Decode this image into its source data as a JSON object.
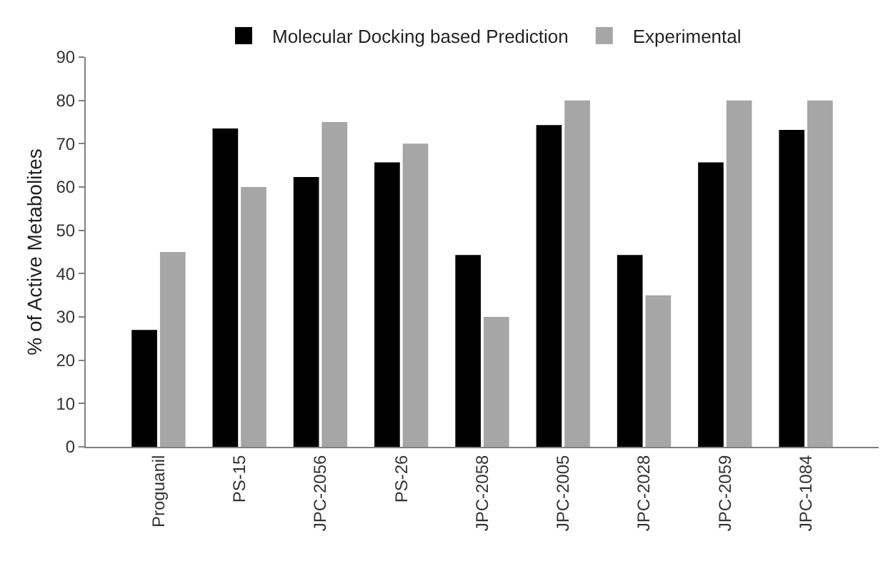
{
  "chart_data": {
    "type": "bar",
    "ylabel": "% of Active Metabolites",
    "categories": [
      "Proguanil",
      "PS-15",
      "JPC-2056",
      "PS-26",
      "JPC-2058",
      "JPC-2005",
      "JPC-2028",
      "JPC-2059",
      "JPC-1084"
    ],
    "series": [
      {
        "name": "Molecular Docking based Prediction",
        "color": "#000000",
        "values": [
          27,
          73.5,
          62.3,
          65.7,
          44.3,
          74.3,
          44.3,
          65.7,
          73.2
        ]
      },
      {
        "name": "Experimental",
        "color": "#a6a6a6",
        "values": [
          45,
          60,
          75,
          70,
          30,
          80,
          35,
          80,
          80
        ]
      }
    ],
    "ylim": [
      0,
      90
    ],
    "yticks": [
      0,
      10,
      20,
      30,
      40,
      50,
      60,
      70,
      80,
      90
    ],
    "legend": "top"
  }
}
